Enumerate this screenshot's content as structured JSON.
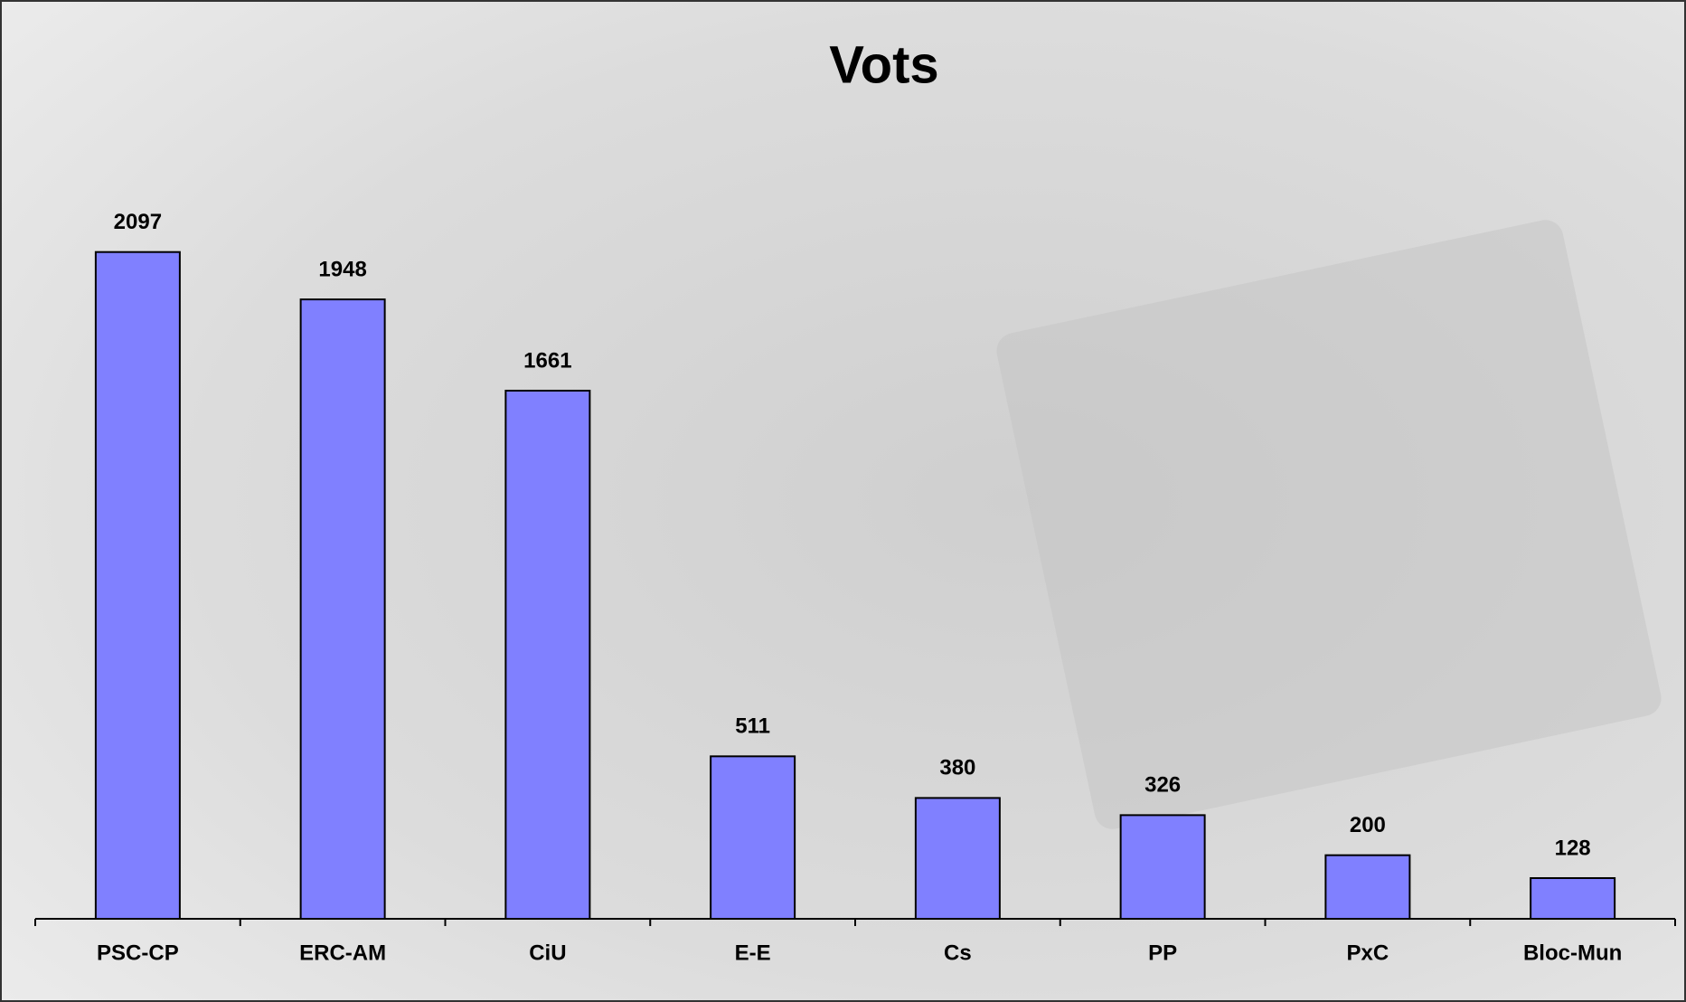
{
  "chart_data": {
    "type": "bar",
    "title": "Vots",
    "categories": [
      "PSC-CP",
      "ERC-AM",
      "CiU",
      "E-E",
      "Cs",
      "PP",
      "PxC",
      "Bloc-Mun"
    ],
    "values": [
      2097,
      1948,
      1661,
      511,
      380,
      326,
      200,
      128
    ],
    "color": "#8080ff",
    "ylim": [
      0,
      2500
    ]
  }
}
